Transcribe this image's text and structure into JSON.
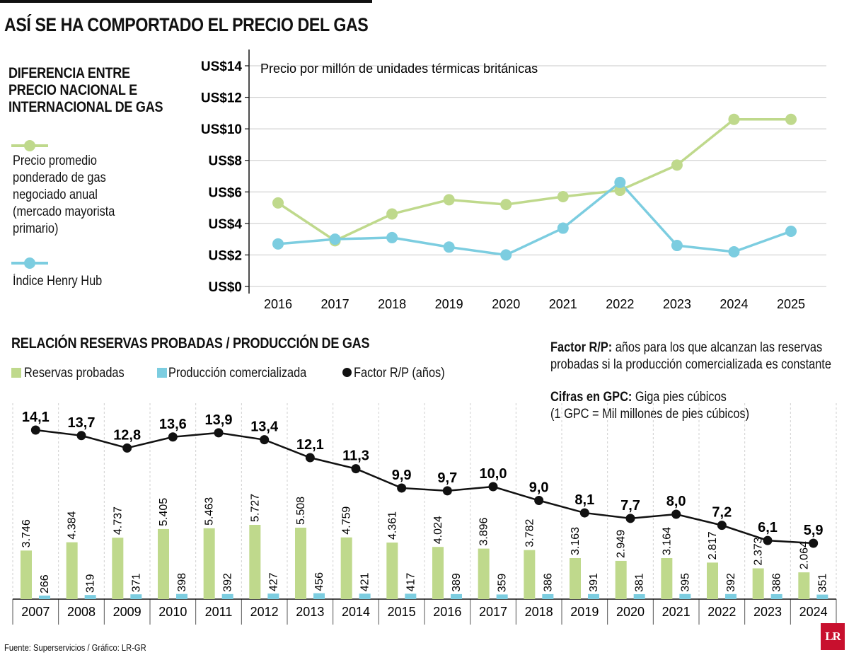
{
  "title": "ASÍ SE HA COMPORTADO EL PRECIO DEL GAS",
  "top_section": {
    "heading_lines": [
      "DIFERENCIA ENTRE",
      "PRECIO NACIONAL E",
      "INTERNACIONAL DE GAS"
    ],
    "legend": [
      {
        "lines": [
          "Precio promedio",
          "ponderado de gas",
          "negociado anual",
          "(mercado mayorista",
          "primario)"
        ],
        "color": "#bfd98c"
      },
      {
        "lines": [
          "Índice Henry Hub"
        ],
        "color": "#7ccde0"
      }
    ]
  },
  "bottom_section": {
    "heading": "RELACIÓN RESERVAS PROBADAS / PRODUCCIÓN DE GAS",
    "legend": [
      {
        "label": "Reservas probadas",
        "color": "#bfd98c"
      },
      {
        "label": "Producción comercializada",
        "color": "#7ccde0"
      },
      {
        "label": "Factor R/P (años)",
        "color": "#111111"
      }
    ],
    "notes": [
      {
        "bold": "Factor R/P:",
        "text": " años para los que alcanzan las reservas",
        "line2": "probadas si la producción comercializada es constante"
      },
      {
        "bold": "Cifras en GPC:",
        "text": " Giga pies cúbicos",
        "line2": "(1 GPC = Mil millones de pies cúbicos)"
      }
    ]
  },
  "source": "Fuente: Superservicios / Gráfico: LR-GR",
  "logo": "LR",
  "chart_data": [
    {
      "type": "line",
      "annotation": "Precio por millón de unidades térmicas británicas",
      "x": [
        "2016",
        "2017",
        "2018",
        "2019",
        "2020",
        "2021",
        "2022",
        "2023",
        "2024",
        "2025"
      ],
      "series": [
        {
          "name": "Precio promedio ponderado de gas negociado anual (mercado mayorista primario)",
          "color": "#bfd98c",
          "values": [
            5.3,
            2.9,
            4.6,
            5.5,
            5.2,
            5.7,
            6.1,
            7.7,
            10.6,
            10.6
          ]
        },
        {
          "name": "Índice Henry Hub",
          "color": "#7ccde0",
          "values": [
            2.7,
            3.0,
            3.1,
            2.5,
            2.0,
            3.7,
            6.6,
            2.6,
            2.2,
            3.5
          ]
        }
      ],
      "ylim": [
        0,
        14
      ],
      "yticks": [
        0,
        2,
        4,
        6,
        8,
        10,
        12,
        14
      ],
      "ytick_labels": [
        "US$0",
        "US$2",
        "US$4",
        "US$6",
        "US$8",
        "US$10",
        "US$12",
        "US$14"
      ],
      "grid": true
    },
    {
      "type": "bar",
      "categories": [
        "2007",
        "2008",
        "2009",
        "2010",
        "2011",
        "2012",
        "2013",
        "2014",
        "2015",
        "2016",
        "2017",
        "2018",
        "2019",
        "2020",
        "2021",
        "2022",
        "2023",
        "2024"
      ],
      "series": [
        {
          "name": "Reservas probadas",
          "color": "#bfd98c",
          "values": [
            3746,
            4384,
            4737,
            5405,
            5463,
            5727,
            5508,
            4759,
            4361,
            4024,
            3896,
            3782,
            3163,
            2949,
            3164,
            2817,
            2373,
            2064
          ],
          "labels": [
            "3.746",
            "4.384",
            "4.737",
            "5.405",
            "5.463",
            "5.727",
            "5.508",
            "4.759",
            "4.361",
            "4.024",
            "3.896",
            "3.782",
            "3.163",
            "2.949",
            "3.164",
            "2.817",
            "2.373",
            "2.064"
          ]
        },
        {
          "name": "Producción comercializada",
          "color": "#7ccde0",
          "values": [
            266,
            319,
            371,
            398,
            392,
            427,
            456,
            421,
            417,
            389,
            359,
            386,
            391,
            381,
            395,
            392,
            386,
            351
          ],
          "labels": [
            "266",
            "319",
            "371",
            "398",
            "392",
            "427",
            "456",
            "421",
            "417",
            "389",
            "359",
            "386",
            "391",
            "381",
            "395",
            "392",
            "386",
            "351"
          ]
        }
      ],
      "line_series": {
        "name": "Factor R/P (años)",
        "color": "#111111",
        "values": [
          14.1,
          13.7,
          12.8,
          13.6,
          13.9,
          13.4,
          12.1,
          11.3,
          9.9,
          9.7,
          10.0,
          9.0,
          8.1,
          7.7,
          8.0,
          7.2,
          6.1,
          5.9
        ],
        "labels": [
          "14,1",
          "13,7",
          "12,8",
          "13,6",
          "13,9",
          "13,4",
          "12,1",
          "11,3",
          "9,9",
          "9,7",
          "10,0",
          "9,0",
          "8,1",
          "7,7",
          "8,0",
          "7,2",
          "6,1",
          "5,9"
        ]
      }
    }
  ]
}
